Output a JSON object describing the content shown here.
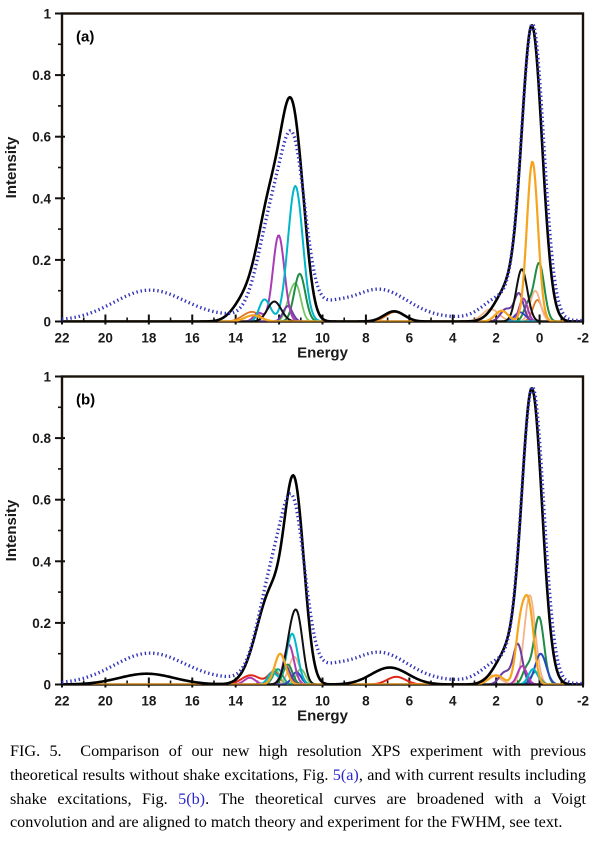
{
  "page": {
    "background": "#ffffff"
  },
  "caption": {
    "parts": [
      {
        "text": "FIG. 5.  Comparison of our new high resolution XPS experiment with previous theoretical results without shake excitations, Fig. ",
        "link": false
      },
      {
        "text": "5(a)",
        "link": true,
        "name": "figure-ref-link-5a"
      },
      {
        "text": ", and with current results including shake excitations, Fig. ",
        "link": false
      },
      {
        "text": "5(b)",
        "link": true,
        "name": "figure-ref-link-5b"
      },
      {
        "text": ". The theoretical curves are broadened with a Voigt convolution and are aligned to match theory and experiment for the FWHM, see text.",
        "link": false
      }
    ],
    "link_color": "#2a28cc"
  },
  "chart_data": [
    {
      "type": "line",
      "panel_label": "(a)",
      "xlabel": "Energy",
      "ylabel": "Intensity",
      "xlim": [
        22,
        -2
      ],
      "ylim": [
        0,
        1
      ],
      "x_axis_reversed": true,
      "grid": false,
      "legend": "none",
      "x_major_ticks": [
        22,
        20,
        18,
        16,
        14,
        12,
        10,
        8,
        6,
        4,
        2,
        0,
        -2
      ],
      "x_minor_ticks": [
        21,
        19,
        17,
        15,
        13,
        11,
        9,
        7,
        5,
        3,
        1,
        -1
      ],
      "y_major_ticks": [
        {
          "value": 0,
          "label": "0"
        },
        {
          "value": 0.2,
          "label": "0.2"
        },
        {
          "value": 0.4,
          "label": "0.4"
        },
        {
          "value": 0.6,
          "label": "0.6"
        },
        {
          "value": 0.8,
          "label": "0.8"
        },
        {
          "value": 1,
          "label": "1"
        }
      ],
      "y_minor_ticks": [
        0.1,
        0.3,
        0.5,
        0.7,
        0.9
      ],
      "frame_color": "#1a1208",
      "series_note": "each peak is [center_energy, height, fwhm]; curves are sums of peaks",
      "series": [
        {
          "name": "component-dark-orange",
          "color": "#e07820",
          "style": "solid",
          "width": 1.8,
          "peaks": [
            [
              6.62,
              0.032,
              1.0
            ],
            [
              13.5,
              0.018,
              0.8
            ],
            [
              13.1,
              0.02,
              0.7
            ],
            [
              0.1,
              0.07,
              0.5
            ]
          ]
        },
        {
          "name": "component-peach",
          "color": "#f2b48c",
          "style": "solid",
          "width": 1.8,
          "peaks": [
            [
              0.2,
              0.1,
              0.55
            ],
            [
              2.25,
              0.04,
              0.9
            ]
          ]
        },
        {
          "name": "component-light-green",
          "color": "#78c464",
          "style": "solid",
          "width": 1.8,
          "peaks": [
            [
              11.18,
              0.1,
              0.5
            ],
            [
              11.5,
              0.06,
              0.5
            ]
          ]
        },
        {
          "name": "component-green",
          "color": "#1e8c46",
          "style": "solid",
          "width": 2,
          "peaks": [
            [
              11.05,
              0.155,
              0.6
            ],
            [
              0.02,
              0.19,
              0.55
            ],
            [
              0.55,
              0.05,
              0.45
            ]
          ]
        },
        {
          "name": "component-navy",
          "color": "#2848c0",
          "style": "solid",
          "width": 1.8,
          "peaks": [
            [
              0.9,
              0.03,
              0.6
            ]
          ]
        },
        {
          "name": "component-purple",
          "color": "#6a3ca0",
          "style": "solid",
          "width": 2,
          "peaks": [
            [
              0.95,
              0.09,
              0.5
            ],
            [
              1.55,
              0.04,
              0.6
            ],
            [
              11.6,
              0.05,
              0.5
            ]
          ]
        },
        {
          "name": "component-magenta",
          "color": "#a83cb4",
          "style": "solid",
          "width": 2,
          "peaks": [
            [
              12.02,
              0.28,
              0.62
            ],
            [
              12.95,
              0.028,
              0.5
            ],
            [
              0.75,
              0.075,
              0.45
            ]
          ]
        },
        {
          "name": "component-cyan",
          "color": "#00b6c8",
          "style": "solid",
          "width": 2,
          "peaks": [
            [
              11.25,
              0.44,
              0.8
            ],
            [
              12.55,
              0.05,
              0.55
            ],
            [
              12.8,
              0.035,
              0.45
            ]
          ]
        },
        {
          "name": "component-black",
          "color": "#101010",
          "style": "solid",
          "width": 2,
          "peaks": [
            [
              12.22,
              0.065,
              0.75
            ],
            [
              0.82,
              0.17,
              0.6
            ]
          ]
        },
        {
          "name": "component-orange",
          "color": "#f5a41e",
          "style": "solid",
          "width": 2.2,
          "peaks": [
            [
              0.33,
              0.52,
              0.6
            ],
            [
              1.75,
              0.035,
              0.7
            ],
            [
              13.2,
              0.02,
              0.9
            ]
          ]
        },
        {
          "name": "theory-total",
          "color": "#000000",
          "style": "solid",
          "width": 2.6,
          "peaks": [
            [
              11.4,
              0.56,
              1.1
            ],
            [
              12.35,
              0.4,
              1.5
            ],
            [
              10.9,
              0.08,
              0.8
            ],
            [
              13.7,
              0.05,
              1.2
            ],
            [
              6.7,
              0.033,
              1.1
            ],
            [
              0.35,
              0.95,
              1.1
            ],
            [
              1.5,
              0.1,
              1.3
            ]
          ]
        },
        {
          "name": "experiment-dotted",
          "color": "#3535bb",
          "style": "dotted",
          "width": 3.3,
          "peaks": [
            [
              18.0,
              0.093,
              3.8
            ],
            [
              11.32,
              0.5,
              1.3
            ],
            [
              12.35,
              0.3,
              1.5
            ],
            [
              7.4,
              0.085,
              3.0
            ],
            [
              9.6,
              0.025,
              1.5
            ],
            [
              10,
              0.022,
              14
            ],
            [
              0.32,
              0.95,
              1.2
            ],
            [
              1.8,
              0.07,
              1.8
            ]
          ]
        }
      ]
    },
    {
      "type": "line",
      "panel_label": "(b)",
      "xlabel": "Energy",
      "ylabel": "Intensity",
      "xlim": [
        22,
        -2
      ],
      "ylim": [
        0,
        1
      ],
      "x_axis_reversed": true,
      "grid": false,
      "legend": "none",
      "x_major_ticks": [
        22,
        20,
        18,
        16,
        14,
        12,
        10,
        8,
        6,
        4,
        2,
        0,
        -2
      ],
      "x_minor_ticks": [
        21,
        19,
        17,
        15,
        13,
        11,
        9,
        7,
        5,
        3,
        1,
        -1
      ],
      "y_major_ticks": [
        {
          "value": 0,
          "label": "0"
        },
        {
          "value": 0.2,
          "label": "0.2"
        },
        {
          "value": 0.4,
          "label": "0.4"
        },
        {
          "value": 0.6,
          "label": "0.6"
        },
        {
          "value": 0.8,
          "label": "0.8"
        },
        {
          "value": 1,
          "label": "1"
        }
      ],
      "y_minor_ticks": [
        0.1,
        0.3,
        0.5,
        0.7,
        0.9
      ],
      "frame_color": "#1a1208",
      "series_note": "each peak is [center_energy, height, fwhm]; curves are sums of peaks",
      "series": [
        {
          "name": "component-red",
          "color": "#e02818",
          "style": "solid",
          "width": 2,
          "peaks": [
            [
              13.3,
              0.03,
              1.0
            ],
            [
              6.6,
              0.025,
              1.0
            ],
            [
              12.25,
              0.04,
              0.6
            ]
          ]
        },
        {
          "name": "component-peach",
          "color": "#f2b48c",
          "style": "solid",
          "width": 1.8,
          "peaks": [
            [
              0.45,
              0.29,
              0.6
            ],
            [
              2.2,
              0.03,
              0.9
            ],
            [
              11.3,
              0.09,
              0.6
            ]
          ]
        },
        {
          "name": "component-light-green",
          "color": "#78c464",
          "style": "solid",
          "width": 1.8,
          "peaks": [
            [
              11.0,
              0.05,
              0.5
            ],
            [
              12.2,
              0.05,
              0.5
            ]
          ]
        },
        {
          "name": "component-teal",
          "color": "#14a086",
          "style": "solid",
          "width": 1.8,
          "peaks": [
            [
              12.05,
              0.05,
              0.5
            ],
            [
              0.2,
              0.04,
              0.5
            ]
          ]
        },
        {
          "name": "component-green",
          "color": "#1e8c46",
          "style": "solid",
          "width": 2,
          "peaks": [
            [
              0.03,
              0.22,
              0.55
            ],
            [
              11.6,
              0.065,
              0.5
            ],
            [
              0.6,
              0.05,
              0.45
            ]
          ]
        },
        {
          "name": "component-navy",
          "color": "#2848c0",
          "style": "solid",
          "width": 2,
          "peaks": [
            [
              -0.05,
              0.1,
              0.6
            ],
            [
              11.2,
              0.04,
              0.5
            ]
          ]
        },
        {
          "name": "component-purple",
          "color": "#6a3ca0",
          "style": "solid",
          "width": 2,
          "peaks": [
            [
              1.0,
              0.13,
              0.5
            ],
            [
              11.7,
              0.06,
              0.5
            ],
            [
              1.6,
              0.04,
              0.6
            ]
          ]
        },
        {
          "name": "component-magenta",
          "color": "#b03cb0",
          "style": "solid",
          "width": 2,
          "peaks": [
            [
              11.55,
              0.13,
              0.55
            ],
            [
              0.8,
              0.06,
              0.5
            ],
            [
              13.35,
              0.022,
              0.6
            ]
          ]
        },
        {
          "name": "component-cyan",
          "color": "#00b6c8",
          "style": "solid",
          "width": 2,
          "peaks": [
            [
              11.4,
              0.165,
              0.6
            ],
            [
              0.3,
              0.05,
              0.5
            ],
            [
              12.3,
              0.04,
              0.5
            ]
          ]
        },
        {
          "name": "component-black",
          "color": "#101010",
          "style": "solid",
          "width": 2,
          "peaks": [
            [
              11.35,
              0.2,
              0.7
            ],
            [
              11.05,
              0.085,
              0.5
            ]
          ]
        },
        {
          "name": "component-orange",
          "color": "#f5a41e",
          "style": "solid",
          "width": 2.2,
          "peaks": [
            [
              11.95,
              0.1,
              0.6
            ],
            [
              0.5,
              0.25,
              0.55
            ],
            [
              0.9,
              0.17,
              0.5
            ],
            [
              2.0,
              0.03,
              0.8
            ]
          ]
        },
        {
          "name": "theory-total",
          "color": "#000000",
          "style": "solid",
          "width": 2.6,
          "peaks": [
            [
              11.32,
              0.55,
              1.0
            ],
            [
              12.35,
              0.3,
              1.6
            ],
            [
              10.9,
              0.07,
              0.8
            ],
            [
              18.1,
              0.035,
              3.0
            ],
            [
              6.9,
              0.055,
              2.0
            ],
            [
              0.35,
              0.95,
              1.1
            ],
            [
              1.5,
              0.1,
              1.3
            ]
          ]
        },
        {
          "name": "experiment-dotted",
          "color": "#3535bb",
          "style": "dotted",
          "width": 3.3,
          "peaks": [
            [
              18.0,
              0.093,
              3.8
            ],
            [
              11.32,
              0.5,
              1.3
            ],
            [
              12.35,
              0.3,
              1.5
            ],
            [
              7.4,
              0.085,
              3.0
            ],
            [
              9.6,
              0.025,
              1.5
            ],
            [
              10,
              0.022,
              14
            ],
            [
              0.32,
              0.95,
              1.2
            ],
            [
              1.8,
              0.07,
              1.8
            ]
          ]
        }
      ]
    }
  ]
}
